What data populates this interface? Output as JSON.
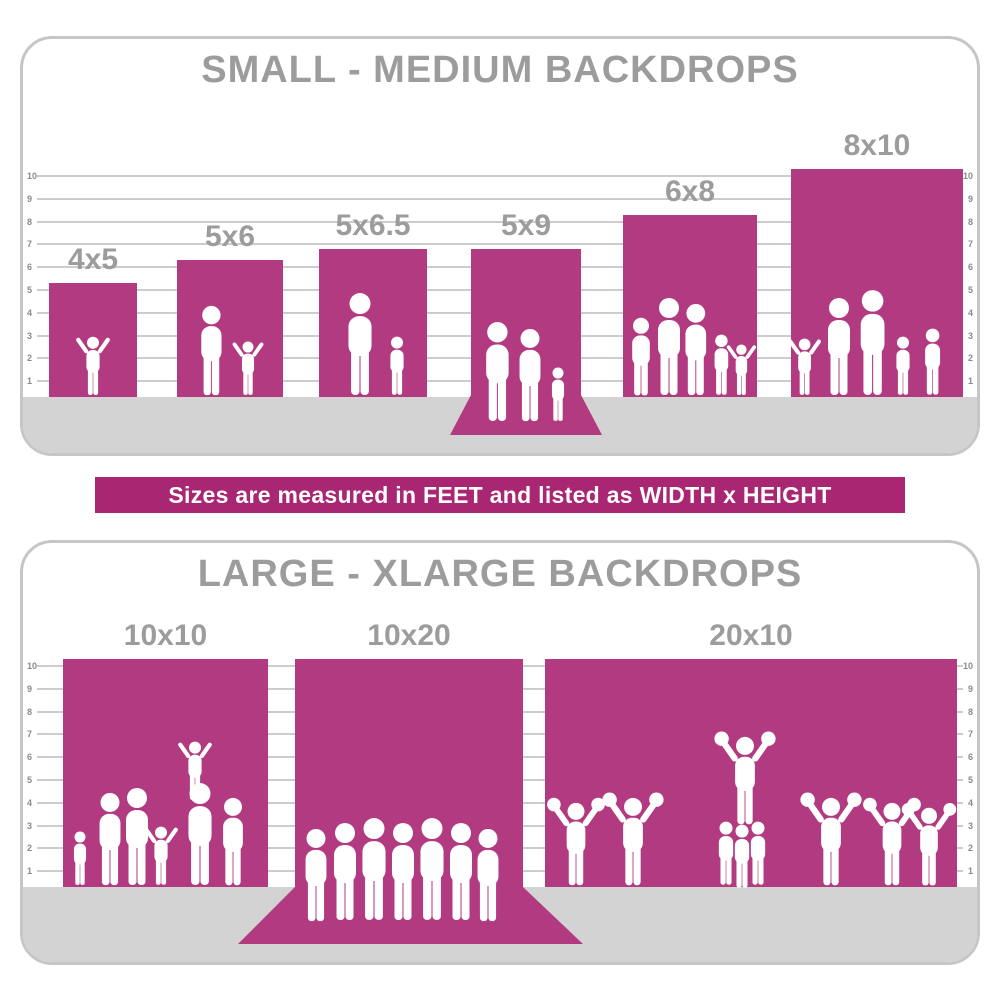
{
  "colors": {
    "accent": "#b23a80",
    "banner": "#a92672",
    "title_gray": "#9c9c9c",
    "floor": "#d3d3d3",
    "line": "#cccccc",
    "tick": "#8a8a8a",
    "border": "#c6c6c6",
    "silhouette": "#ffffff"
  },
  "banner": {
    "text": "Sizes are measured in FEET and listed as WIDTH x HEIGHT"
  },
  "chart_data": [
    {
      "type": "bar",
      "title": "SMALL - MEDIUM BACKDROPS",
      "categories": [
        "4x5",
        "5x6",
        "5x6.5",
        "5x9",
        "6x8",
        "8x10"
      ],
      "series": [
        {
          "name": "width_ft",
          "values": [
            4,
            5,
            5,
            5,
            6,
            8
          ]
        },
        {
          "name": "height_ft",
          "values": [
            5,
            6,
            6.5,
            9,
            8,
            10
          ]
        },
        {
          "name": "drawn_wall_height_ft",
          "values": [
            5,
            6,
            6.5,
            6.5,
            8,
            10
          ]
        }
      ],
      "units": "feet",
      "note": "sizes listed as WIDTH x HEIGHT",
      "ylim": [
        0,
        10
      ],
      "yticks": [
        1,
        2,
        3,
        4,
        5,
        6,
        7,
        8,
        9,
        10
      ],
      "floor_runner": [
        false,
        false,
        false,
        true,
        false,
        false
      ],
      "grid": true,
      "legend": "none"
    },
    {
      "type": "bar",
      "title": "LARGE - XLARGE BACKDROPS",
      "categories": [
        "10x10",
        "10x20",
        "20x10"
      ],
      "series": [
        {
          "name": "width_ft",
          "values": [
            10,
            10,
            20
          ]
        },
        {
          "name": "height_ft",
          "values": [
            10,
            20,
            10
          ]
        },
        {
          "name": "drawn_wall_height_ft",
          "values": [
            10,
            10,
            10
          ]
        }
      ],
      "units": "feet",
      "note": "sizes listed as WIDTH x HEIGHT",
      "ylim": [
        0,
        10
      ],
      "yticks": [
        1,
        2,
        3,
        4,
        5,
        6,
        7,
        8,
        9,
        10
      ],
      "floor_runner": [
        false,
        true,
        false
      ],
      "grid": true,
      "legend": "none"
    }
  ]
}
